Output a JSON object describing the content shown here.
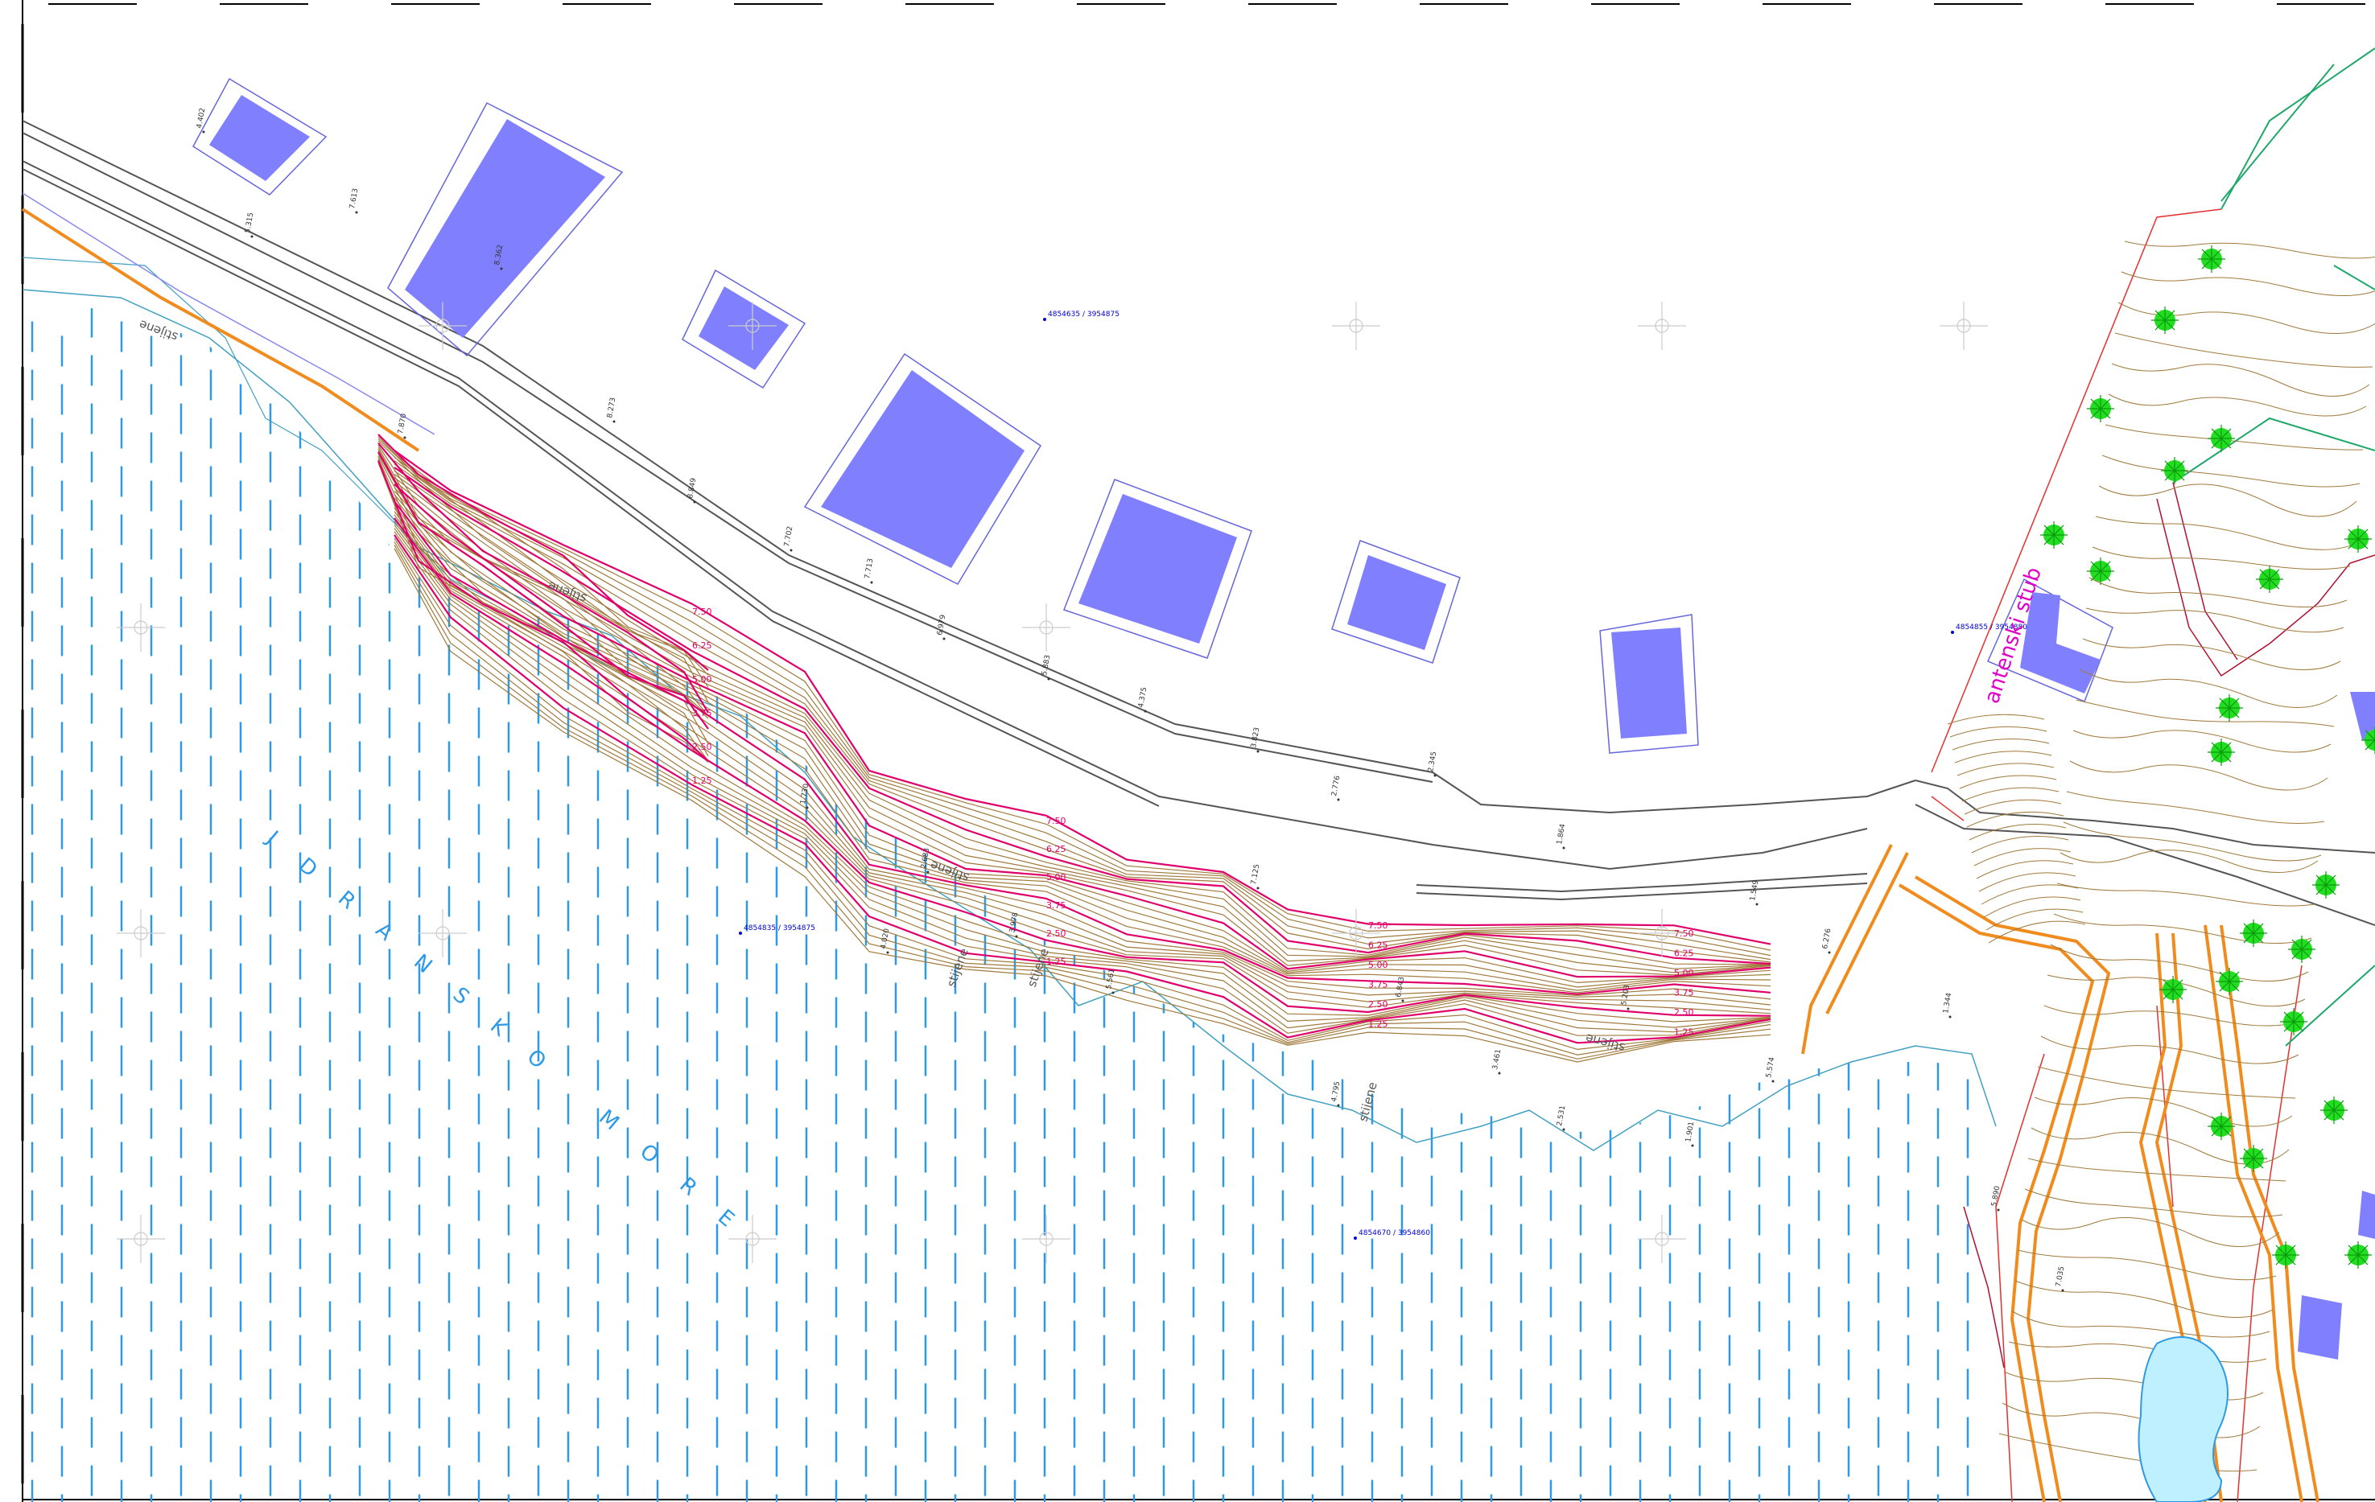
{
  "map": {
    "sea_label": "JDRANSKO MORE",
    "antenna_label": "antenski stub",
    "rock_label": "stijene",
    "colors": {
      "building": "#8080ff",
      "building_outline": "#6666dd",
      "road": "#555555",
      "contour_major": "#e0006a",
      "contour_minor": "#a07a3c",
      "sea_hatch": "#2e9ae6",
      "parcel": "#e63030",
      "path": "#f08c1e",
      "trees": "#22dd22",
      "plot_line": "#8888ee",
      "coastline": "#40a0c0",
      "grid_cross": "#cccccc"
    },
    "contour_labels": [
      "7.50",
      "6.25",
      "5.00",
      "3.75",
      "2.50",
      "1.25"
    ],
    "spot_heights": [
      "4.402",
      "5.315",
      "7.613",
      "7.870",
      "8.362",
      "8.273",
      "8.849",
      "7.702",
      "7.713",
      "6.979",
      "5.883",
      "4.375",
      "3.823",
      "2.776",
      "2.345",
      "1.864",
      "1.549",
      "6.276",
      "5.574",
      "4.795",
      "5.561",
      "3.978",
      "2.683",
      "1.730",
      "4.020",
      "7.125",
      "6.843",
      "5.203",
      "3.461",
      "2.531",
      "1.901",
      "1.344",
      "5.890",
      "7.035"
    ],
    "benchmarks": [
      {
        "id": "4",
        "coords": "4854635 / 3954875"
      },
      {
        "id": "4",
        "coords": "4854835 / 3954875"
      },
      {
        "id": "4",
        "coords": "4854670 / 3954860"
      },
      {
        "id": "4",
        "coords": "4854855 / 3954880"
      }
    ]
  }
}
